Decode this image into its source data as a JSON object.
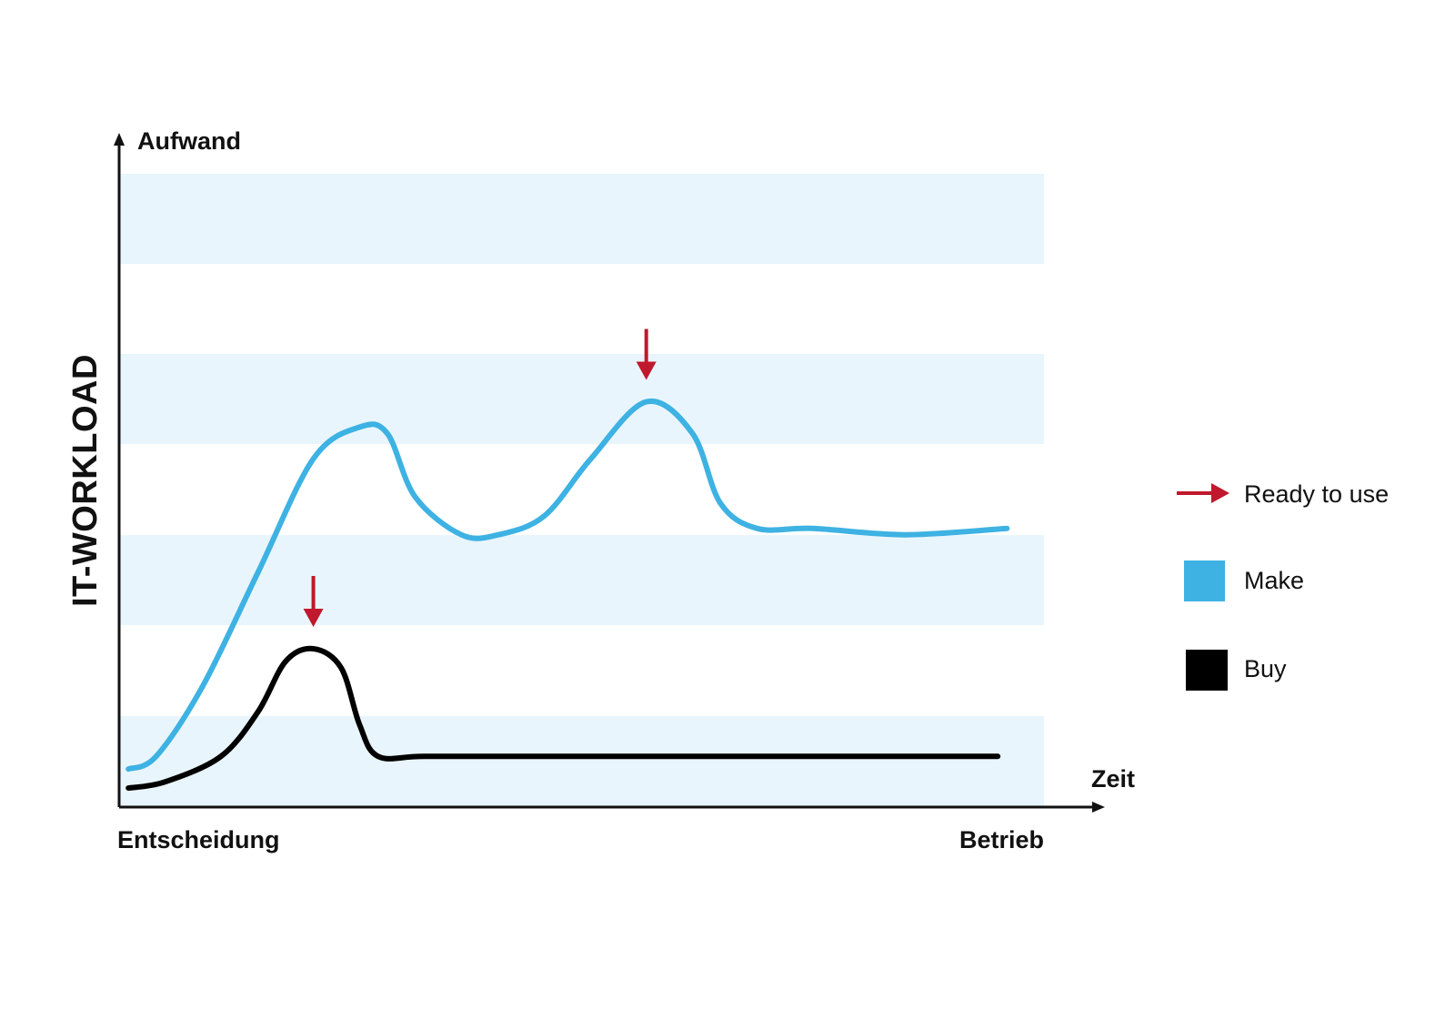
{
  "chart_data": {
    "type": "line",
    "title": "",
    "ylabel": "IT-WORKLOAD",
    "y_axis_title": "Aufwand",
    "xlabel": "Zeit",
    "x_start_label": "Entscheidung",
    "x_end_label": "Betrieb",
    "grid": "horizontal bands",
    "legend_position": "right",
    "legend": [
      {
        "label": "Ready to use",
        "marker": "arrow",
        "color": "#c0182c"
      },
      {
        "label": "Make",
        "marker": "square",
        "color": "#3db2e3"
      },
      {
        "label": "Buy",
        "marker": "square",
        "color": "#000000"
      }
    ],
    "colors": {
      "band": "#e9f5fc",
      "make": "#3db2e3",
      "buy": "#000000",
      "ready": "#c0182c",
      "axis": "#111111"
    },
    "series": [
      {
        "name": "Make",
        "color": "#3db2e3",
        "points": [
          [
            0.01,
            0.06
          ],
          [
            0.04,
            0.08
          ],
          [
            0.09,
            0.19
          ],
          [
            0.15,
            0.37
          ],
          [
            0.21,
            0.55
          ],
          [
            0.26,
            0.6
          ],
          [
            0.29,
            0.59
          ],
          [
            0.32,
            0.49
          ],
          [
            0.37,
            0.43
          ],
          [
            0.41,
            0.43
          ],
          [
            0.46,
            0.46
          ],
          [
            0.51,
            0.55
          ],
          [
            0.57,
            0.64
          ],
          [
            0.62,
            0.59
          ],
          [
            0.65,
            0.48
          ],
          [
            0.69,
            0.44
          ],
          [
            0.75,
            0.44
          ],
          [
            0.85,
            0.43
          ],
          [
            0.96,
            0.44
          ]
        ]
      },
      {
        "name": "Buy",
        "color": "#000000",
        "points": [
          [
            0.01,
            0.03
          ],
          [
            0.05,
            0.04
          ],
          [
            0.11,
            0.08
          ],
          [
            0.15,
            0.15
          ],
          [
            0.18,
            0.23
          ],
          [
            0.21,
            0.25
          ],
          [
            0.24,
            0.22
          ],
          [
            0.26,
            0.13
          ],
          [
            0.28,
            0.08
          ],
          [
            0.33,
            0.08
          ],
          [
            0.45,
            0.08
          ],
          [
            0.65,
            0.08
          ],
          [
            0.95,
            0.08
          ]
        ]
      }
    ],
    "ready_to_use": [
      {
        "series": "Buy",
        "x": 0.21
      },
      {
        "series": "Make",
        "x": 0.57
      }
    ]
  }
}
